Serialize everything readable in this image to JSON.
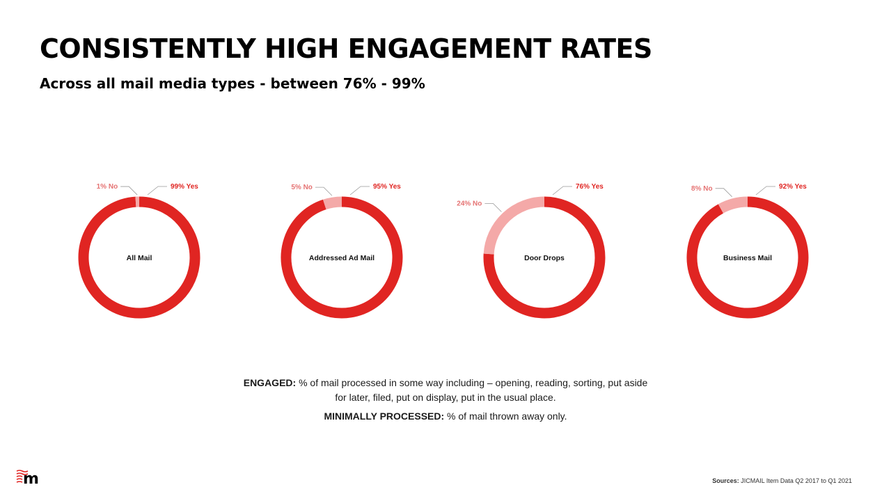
{
  "header": {
    "title": "CONSISTENTLY HIGH ENGAGEMENT RATES",
    "subtitle": "Across all mail media types - between 76% - 99%"
  },
  "chart_data": [
    {
      "type": "pie",
      "center_label": "All Mail",
      "slices": [
        {
          "label": "99% Yes",
          "value": 99
        },
        {
          "label": "1% No",
          "value": 1
        }
      ]
    },
    {
      "type": "pie",
      "center_label": "Addressed Ad Mail",
      "slices": [
        {
          "label": "95% Yes",
          "value": 95
        },
        {
          "label": "5% No",
          "value": 5
        }
      ]
    },
    {
      "type": "pie",
      "center_label": "Door Drops",
      "slices": [
        {
          "label": "76% Yes",
          "value": 76
        },
        {
          "label": "24% No",
          "value": 24
        }
      ]
    },
    {
      "type": "pie",
      "center_label": "Business Mail",
      "slices": [
        {
          "label": "92% Yes",
          "value": 92
        },
        {
          "label": "8% No",
          "value": 8
        }
      ]
    }
  ],
  "colors": {
    "yes": "#e02522",
    "no": "#f4a9a8",
    "label": "#e02522",
    "label_no": "#e57373",
    "leader": "#999999"
  },
  "notes": {
    "engaged_term": "ENGAGED:",
    "engaged_text": " % of mail processed in some way including – opening, reading, sorting, put aside for later, filed, put on display, put in the usual place.",
    "minimal_term": "MINIMALLY PROCESSED:",
    "minimal_text": " % of mail thrown away only."
  },
  "footer": {
    "logo_text": "m",
    "sources_label": "Sources:",
    "sources_text": "  JICMAIL Item Data Q2 2017 to Q1 2021"
  }
}
